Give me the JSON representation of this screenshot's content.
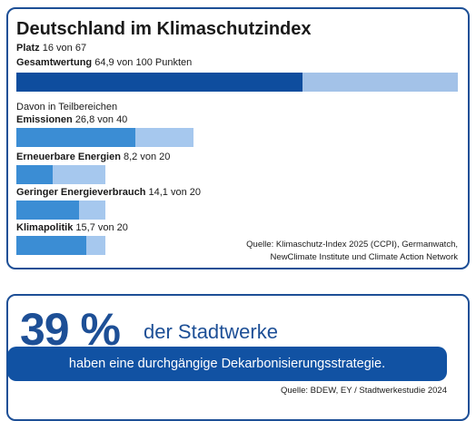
{
  "card1": {
    "title": "Deutschland im Klimaschutzindex",
    "rank": {
      "label": "Platz",
      "value_label": "16 von 67"
    },
    "overall": {
      "label": "Gesamtwertung",
      "value_label": "64,9 von 100 Punkten",
      "value": 64.9,
      "max": 100
    },
    "subtitle": "Davon in Teilbereichen",
    "items": [
      {
        "label": "Emissionen",
        "value_label": "26,8 von 40",
        "value": 26.8,
        "max": 40
      },
      {
        "label": "Erneuerbare Energien",
        "value_label": "8,2 von 20",
        "value": 8.2,
        "max": 20
      },
      {
        "label": "Geringer Energieverbrauch",
        "value_label": "14,1 von 20",
        "value": 14.1,
        "max": 20
      },
      {
        "label": "Klimapolitik",
        "value_label": "15,7 von 20",
        "value": 15.7,
        "max": 20
      }
    ],
    "source": [
      "Quelle: Klimaschutz-Index 2025 (CCPI), Germanwatch,",
      "NewClimate Institute und Climate Action Network"
    ]
  },
  "card2": {
    "big_number": "39 %",
    "headline": "der Stadtwerke",
    "statement": "haben eine durchgängige Dekarbonisierungsstrategie.",
    "source": "Quelle: BDEW, EY / Stadtwerkestudie 2024"
  }
}
